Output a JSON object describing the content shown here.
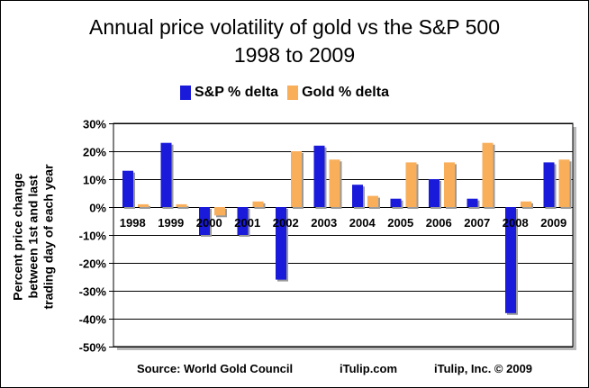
{
  "chart_data": {
    "type": "bar",
    "title": "Annual price volatility of gold vs the S&P 500",
    "subtitle": "1998 to 2009",
    "ylabel_lines": [
      "Percent price change",
      "between 1st and last",
      "trading day of each year"
    ],
    "categories": [
      "1998",
      "1999",
      "2000",
      "2001",
      "2002",
      "2003",
      "2004",
      "2005",
      "2006",
      "2007",
      "2008",
      "2009"
    ],
    "series": [
      {
        "name": "S&P % delta",
        "color": "#1a1adb",
        "values": [
          13,
          23,
          -10,
          -10,
          -26,
          22,
          8,
          3,
          10,
          3,
          -38,
          16
        ]
      },
      {
        "name": "Gold % delta",
        "color": "#f9ae5a",
        "values": [
          1,
          1,
          -3,
          2,
          20,
          17,
          4,
          16,
          16,
          23,
          2,
          17
        ]
      }
    ],
    "ylim": [
      -50,
      30
    ],
    "yticks": [
      30,
      20,
      10,
      0,
      -10,
      -20,
      -30,
      -40,
      -50
    ],
    "ytick_labels": [
      "30%",
      "20%",
      "10%",
      "0%",
      "-10%",
      "-20%",
      "-30%",
      "-40%",
      "-50%"
    ],
    "grid": true,
    "legend_position": "top-center"
  },
  "footer": {
    "source": "Source: World Gold Council",
    "site": "iTulip.com",
    "copyright": "iTulip, Inc. © 2009"
  }
}
